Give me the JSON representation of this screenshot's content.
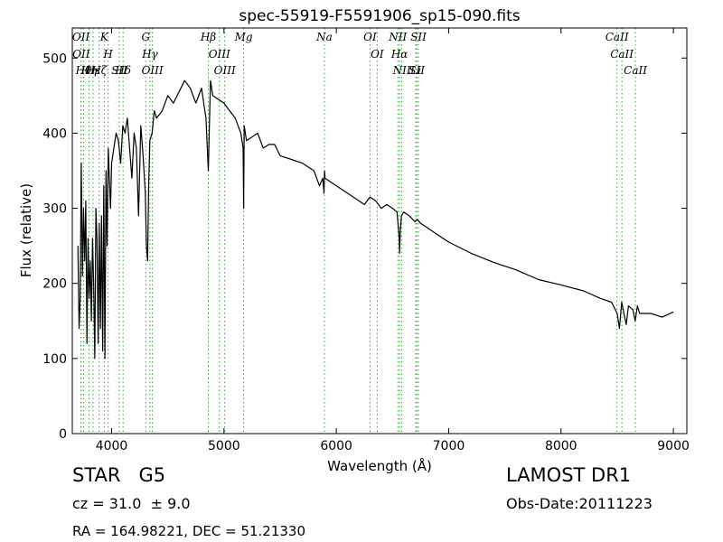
{
  "chart_data": {
    "type": "line",
    "title": "spec-55919-F5591906_sp15-090.fits",
    "xlabel": "Wavelength (Å)",
    "ylabel": "Flux (relative)",
    "xlim": [
      3650,
      9120
    ],
    "ylim": [
      0,
      540
    ],
    "xticks": [
      4000,
      5000,
      6000,
      7000,
      8000,
      9000
    ],
    "yticks": [
      0,
      100,
      200,
      300,
      400,
      500
    ],
    "grid": false,
    "line_color": "#000000",
    "marker_line_color": "#33aa33",
    "series": [
      {
        "x": [
          3700,
          3710,
          3720,
          3730,
          3740,
          3750,
          3760,
          3770,
          3780,
          3790,
          3800,
          3810,
          3820,
          3830,
          3840,
          3850,
          3860,
          3870,
          3880,
          3890,
          3900,
          3910,
          3920,
          3930,
          3940,
          3950,
          3960,
          3970,
          3980,
          3990,
          4000,
          4020,
          4040,
          4060,
          4080,
          4100,
          4120,
          4140,
          4160,
          4180,
          4200,
          4220,
          4240,
          4260,
          4280,
          4300,
          4310,
          4320,
          4330,
          4340,
          4360,
          4380,
          4400,
          4450,
          4500,
          4550,
          4600,
          4650,
          4700,
          4750,
          4800,
          4820,
          4840,
          4861,
          4880,
          4900,
          4950,
          5000,
          5050,
          5100,
          5150,
          5170,
          5175,
          5180,
          5200,
          5250,
          5300,
          5350,
          5400,
          5450,
          5500,
          5600,
          5700,
          5800,
          5850,
          5880,
          5890,
          5895,
          5900,
          5950,
          6000,
          6100,
          6200,
          6250,
          6300,
          6350,
          6400,
          6450,
          6500,
          6540,
          6560,
          6563,
          6570,
          6580,
          6600,
          6650,
          6700,
          6720,
          6750,
          6800,
          6900,
          7000,
          7200,
          7400,
          7600,
          7800,
          8000,
          8200,
          8350,
          8450,
          8500,
          8520,
          8540,
          8560,
          8580,
          8600,
          8640,
          8660,
          8680,
          8700,
          8800,
          8900,
          9000
        ],
        "y": [
          250,
          140,
          180,
          360,
          210,
          300,
          230,
          310,
          120,
          260,
          180,
          230,
          150,
          260,
          200,
          100,
          300,
          260,
          120,
          280,
          140,
          290,
          110,
          330,
          100,
          350,
          250,
          380,
          340,
          300,
          360,
          380,
          400,
          390,
          360,
          410,
          400,
          420,
          380,
          340,
          400,
          380,
          290,
          410,
          370,
          320,
          250,
          230,
          330,
          390,
          400,
          430,
          420,
          430,
          450,
          440,
          455,
          470,
          460,
          440,
          460,
          440,
          420,
          350,
          470,
          450,
          445,
          440,
          430,
          420,
          400,
          380,
          300,
          410,
          390,
          395,
          400,
          380,
          385,
          385,
          370,
          365,
          360,
          350,
          330,
          340,
          320,
          350,
          340,
          335,
          330,
          320,
          310,
          305,
          315,
          310,
          300,
          305,
          300,
          295,
          260,
          240,
          270,
          290,
          295,
          290,
          282,
          285,
          280,
          275,
          265,
          255,
          240,
          228,
          218,
          205,
          198,
          190,
          180,
          175,
          160,
          140,
          175,
          160,
          145,
          170,
          165,
          150,
          170,
          160,
          160,
          155,
          162
        ]
      }
    ],
    "line_markers": [
      {
        "wl": 3727,
        "label": "OII"
      },
      {
        "wl": 3729,
        "label": "OII"
      },
      {
        "wl": 3750,
        "label": "Hθ"
      },
      {
        "wl": 3799,
        "label": "Hη"
      },
      {
        "wl": 3835,
        "label": "Hε"
      },
      {
        "wl": 3889,
        "label": "Hζ"
      },
      {
        "wl": 3934,
        "label": "K"
      },
      {
        "wl": 3969,
        "label": "H"
      },
      {
        "wl": 4068,
        "label": "SII"
      },
      {
        "wl": 4102,
        "label": "Hδ"
      },
      {
        "wl": 4304,
        "label": "G"
      },
      {
        "wl": 4341,
        "label": "Hγ"
      },
      {
        "wl": 4363,
        "label": "OIII"
      },
      {
        "wl": 4861,
        "label": "Hβ"
      },
      {
        "wl": 4959,
        "label": "OIII"
      },
      {
        "wl": 5007,
        "label": "OIII"
      },
      {
        "wl": 5175,
        "label": "Mg"
      },
      {
        "wl": 5894,
        "label": "Na"
      },
      {
        "wl": 6300,
        "label": "OI"
      },
      {
        "wl": 6364,
        "label": "OI"
      },
      {
        "wl": 6548,
        "label": "NII"
      },
      {
        "wl": 6563,
        "label": "Hα"
      },
      {
        "wl": 6583,
        "label": "NII"
      },
      {
        "wl": 6707,
        "label": "Li"
      },
      {
        "wl": 6716,
        "label": "SII"
      },
      {
        "wl": 6731,
        "label": "SII"
      },
      {
        "wl": 8498,
        "label": "CaII"
      },
      {
        "wl": 8542,
        "label": "CaII"
      },
      {
        "wl": 8662,
        "label": "CaII"
      }
    ]
  },
  "info": {
    "class_line": "STAR   G5",
    "cz_line": "cz = 31.0  ± 9.0",
    "radec_line": "RA = 164.98221, DEC = 51.21330",
    "survey": "LAMOST DR1",
    "obs_date": "Obs-Date:20111223"
  }
}
